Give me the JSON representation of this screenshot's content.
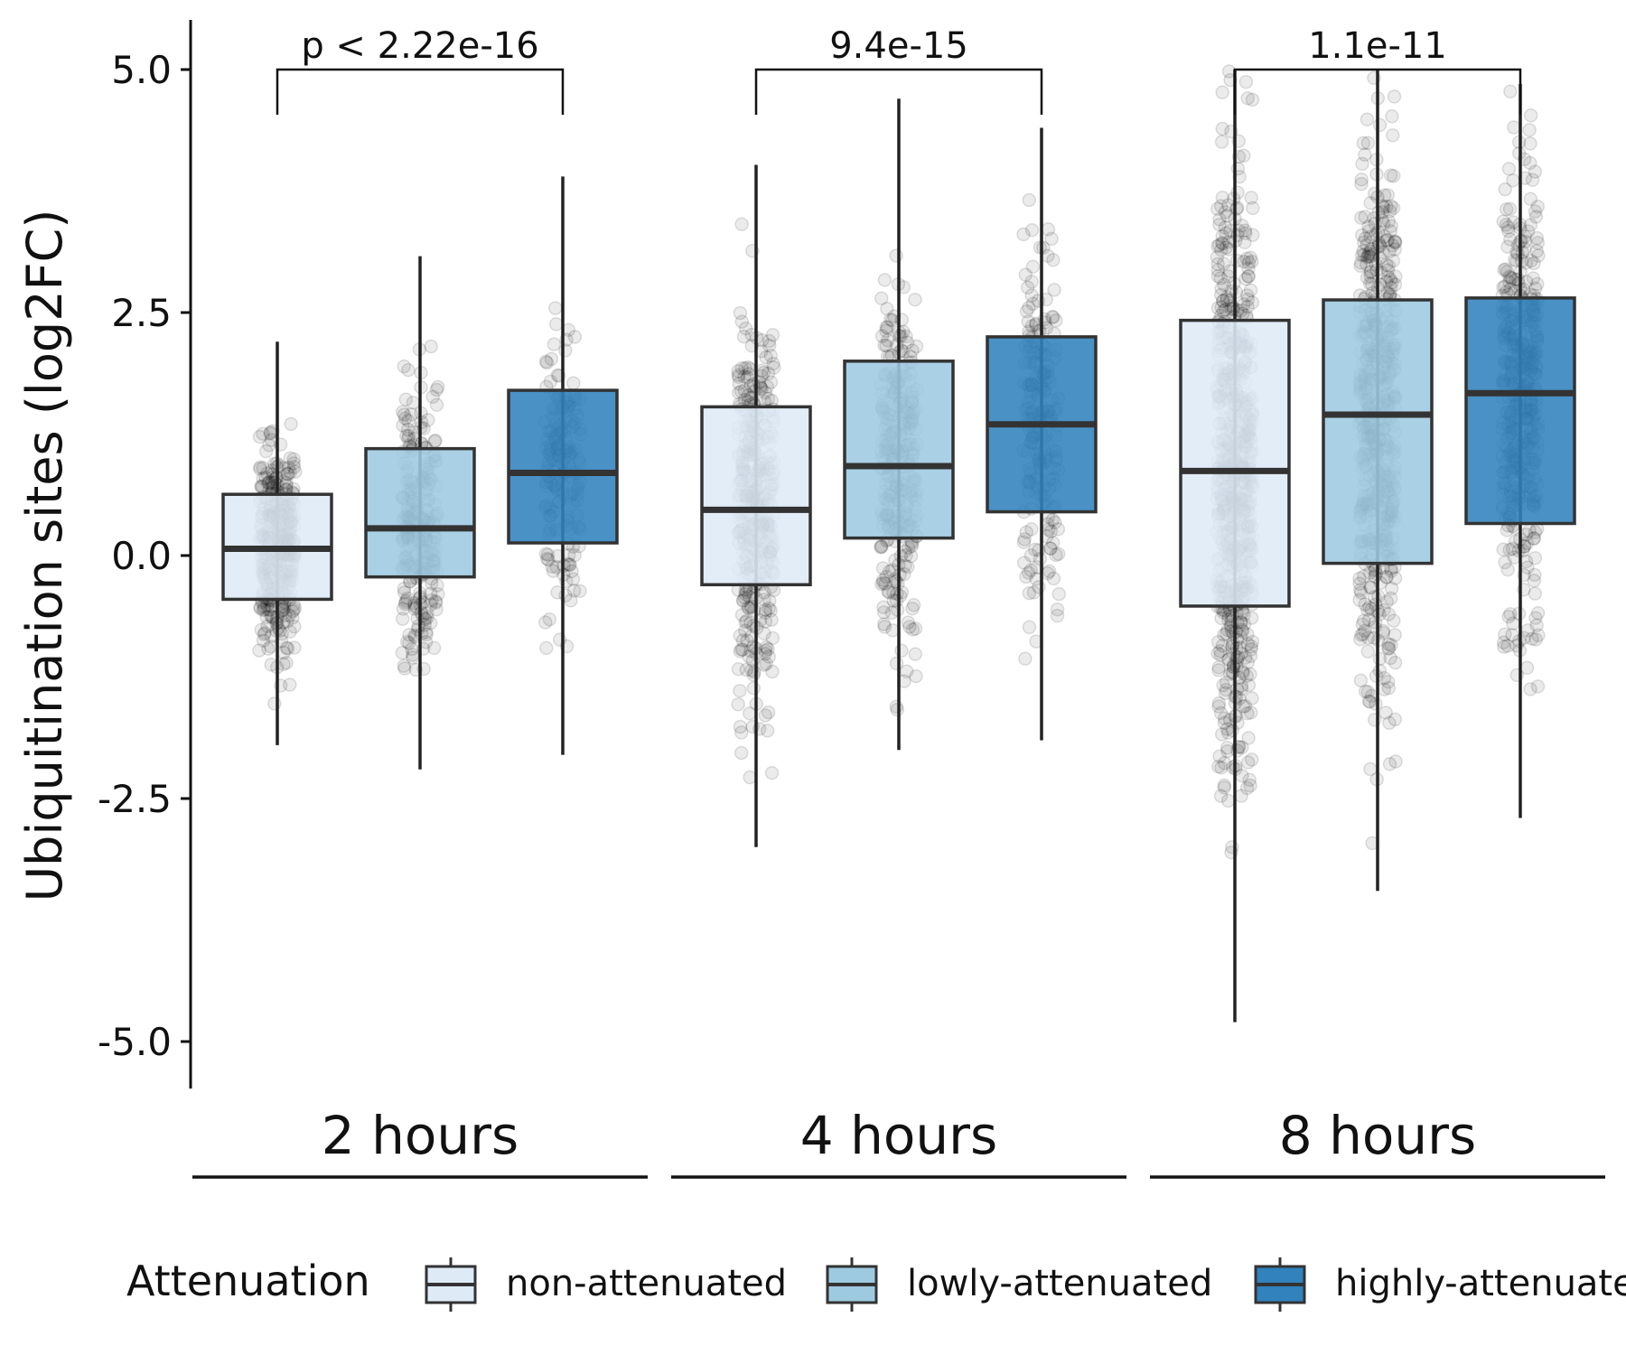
{
  "chart_data": {
    "type": "box",
    "ylabel": "Ubiquitination sites (log2FC)",
    "ylim": [
      -5.5,
      5.5
    ],
    "y_ticks": [
      "-5.0",
      "-2.5",
      "0.0",
      "2.5",
      "5.0"
    ],
    "y_tick_values": [
      -5.0,
      -2.5,
      0.0,
      2.5,
      5.0
    ],
    "legend": {
      "title": "Attenuation",
      "position": "bottom",
      "entries": [
        "non-attenuated",
        "lowly-attenuated",
        "highly-attenuated"
      ]
    },
    "colors": {
      "non-attenuated": "#deebf7",
      "lowly-attenuated": "#9ecae1",
      "highly-attenuated": "#3182bd"
    },
    "groups": [
      {
        "label": "2 hours",
        "comparison": "p < 2.22e-16",
        "boxes": [
          {
            "series": "non-attenuated",
            "whisker_low": -1.95,
            "q1": -0.45,
            "median": 0.07,
            "q3": 0.63,
            "whisker_high": 2.2
          },
          {
            "series": "lowly-attenuated",
            "whisker_low": -2.2,
            "q1": -0.22,
            "median": 0.28,
            "q3": 1.1,
            "whisker_high": 3.08
          },
          {
            "series": "highly-attenuated",
            "whisker_low": -2.05,
            "q1": 0.13,
            "median": 0.85,
            "q3": 1.7,
            "whisker_high": 3.9
          }
        ]
      },
      {
        "label": "4 hours",
        "comparison": "9.4e-15",
        "boxes": [
          {
            "series": "non-attenuated",
            "whisker_low": -3.0,
            "q1": -0.3,
            "median": 0.47,
            "q3": 1.53,
            "whisker_high": 4.02
          },
          {
            "series": "lowly-attenuated",
            "whisker_low": -2.0,
            "q1": 0.18,
            "median": 0.92,
            "q3": 2.0,
            "whisker_high": 4.7
          },
          {
            "series": "highly-attenuated",
            "whisker_low": -1.9,
            "q1": 0.45,
            "median": 1.35,
            "q3": 2.25,
            "whisker_high": 4.4
          }
        ]
      },
      {
        "label": "8 hours",
        "comparison": "1.1e-11",
        "boxes": [
          {
            "series": "non-attenuated",
            "whisker_low": -4.8,
            "q1": -0.52,
            "median": 0.87,
            "q3": 2.42,
            "whisker_high": 5.0
          },
          {
            "series": "lowly-attenuated",
            "whisker_low": -3.45,
            "q1": -0.08,
            "median": 1.45,
            "q3": 2.63,
            "whisker_high": 5.0
          },
          {
            "series": "highly-attenuated",
            "whisker_low": -2.7,
            "q1": 0.33,
            "median": 1.67,
            "q3": 2.65,
            "whisker_high": 4.85
          }
        ]
      }
    ],
    "grid": false
  }
}
